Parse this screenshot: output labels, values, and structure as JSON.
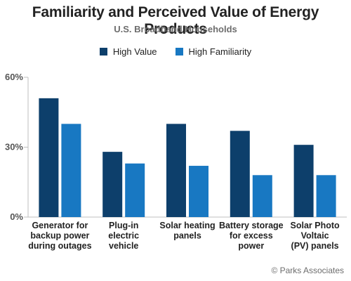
{
  "title": "Familiarity and Perceived Value of Energy Products",
  "subtitle": "U.S. Broadband Households",
  "copyright": "© Parks Associates",
  "colors": {
    "high_value": "#0d3f6b",
    "high_familiarity": "#1878c2",
    "axis": "#bfbfbf",
    "text": "#222222"
  },
  "chart_data": {
    "type": "bar",
    "title": "Familiarity and Perceived Value of Energy Products",
    "subtitle": "U.S. Broadband Households",
    "categories": [
      [
        "Generator for",
        "backup power",
        "during outages"
      ],
      [
        "Plug-in",
        "electric",
        "vehicle"
      ],
      [
        "Solar heating",
        "panels"
      ],
      [
        "Battery storage",
        "for excess",
        "power"
      ],
      [
        "Solar Photo",
        "Voltaic",
        "(PV) panels"
      ]
    ],
    "series": [
      {
        "name": "High Value",
        "values": [
          51,
          28,
          40,
          37,
          31
        ]
      },
      {
        "name": "High Familiarity",
        "values": [
          40,
          23,
          22,
          18,
          18
        ]
      }
    ],
    "ylim": [
      0,
      60
    ],
    "yticks": [
      "0%",
      "30%",
      "60%"
    ],
    "ytick_values": [
      0,
      30,
      60
    ],
    "legend_position": "top-center",
    "grid": false
  }
}
